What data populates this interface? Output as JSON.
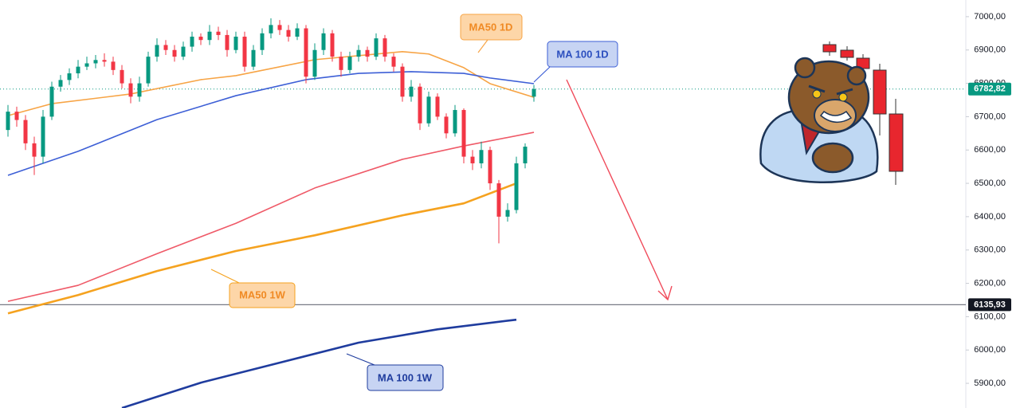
{
  "chart_data": {
    "type": "candlestick",
    "open": [
      6660,
      6715,
      6690,
      6620,
      6580,
      6700,
      6790,
      6810,
      6830,
      6850,
      6860,
      6870,
      6865,
      6840,
      6800,
      6760,
      6800,
      6880,
      6915,
      6900,
      6880,
      6910,
      6940,
      6930,
      6955,
      6945,
      6900,
      6940,
      6850,
      6900,
      6950,
      6975,
      6960,
      6940,
      6965,
      6820,
      6900,
      6950,
      6880,
      6840,
      6880,
      6900,
      6880,
      6935,
      6880,
      6850,
      6760,
      6790,
      6680,
      6760,
      6700,
      6650,
      6720,
      6580,
      6560,
      6600,
      6500,
      6400,
      6420,
      6560,
      6760
    ],
    "high": [
      6735,
      6730,
      6705,
      6640,
      6720,
      6805,
      6825,
      6845,
      6870,
      6880,
      6885,
      6890,
      6880,
      6855,
      6815,
      6820,
      6895,
      6935,
      6930,
      6915,
      6925,
      6955,
      6950,
      6975,
      6970,
      6960,
      6955,
      6955,
      6915,
      6965,
      6995,
      6990,
      6975,
      6980,
      6975,
      6920,
      6965,
      6960,
      6895,
      6895,
      6915,
      6910,
      6950,
      6945,
      6890,
      6860,
      6810,
      6800,
      6775,
      6770,
      6710,
      6735,
      6725,
      6600,
      6625,
      6610,
      6510,
      6440,
      6580,
      6620,
      6795
    ],
    "low": [
      6640,
      6670,
      6600,
      6525,
      6560,
      6690,
      6775,
      6795,
      6815,
      6840,
      6845,
      6850,
      6825,
      6785,
      6740,
      6745,
      6790,
      6865,
      6885,
      6865,
      6870,
      6895,
      6915,
      6915,
      6930,
      6880,
      6890,
      6835,
      6840,
      6885,
      6935,
      6945,
      6925,
      6930,
      6800,
      6810,
      6885,
      6865,
      6820,
      6830,
      6865,
      6865,
      6870,
      6865,
      6835,
      6745,
      6745,
      6660,
      6670,
      6690,
      6635,
      6640,
      6560,
      6540,
      6545,
      6480,
      6320,
      6385,
      6410,
      6545,
      6745
    ],
    "close": [
      6715,
      6690,
      6620,
      6580,
      6700,
      6790,
      6810,
      6830,
      6850,
      6860,
      6870,
      6865,
      6840,
      6800,
      6760,
      6800,
      6880,
      6915,
      6900,
      6880,
      6910,
      6940,
      6930,
      6955,
      6945,
      6900,
      6940,
      6850,
      6900,
      6950,
      6975,
      6960,
      6940,
      6965,
      6820,
      6900,
      6950,
      6880,
      6840,
      6880,
      6900,
      6880,
      6935,
      6880,
      6850,
      6760,
      6790,
      6680,
      6760,
      6700,
      6650,
      6720,
      6580,
      6560,
      6600,
      6500,
      6400,
      6420,
      6560,
      6610,
      6782.82
    ],
    "up_color": "#089981",
    "down_color": "#f23645",
    "series": [
      {
        "name": "MA50 1D",
        "color": "#f7a445",
        "x": [
          0,
          5,
          14,
          22,
          26,
          35,
          45,
          48,
          52,
          55,
          60
        ],
        "values": [
          6703,
          6739,
          6768,
          6811,
          6823,
          6871,
          6895,
          6888,
          6847,
          6799,
          6758
        ]
      },
      {
        "name": "MA 100 1D",
        "color": "#3d5fd6",
        "x": [
          0,
          8,
          17,
          26,
          34,
          40,
          46,
          52,
          55,
          60
        ],
        "values": [
          6524,
          6596,
          6691,
          6763,
          6811,
          6830,
          6835,
          6830,
          6816,
          6799
        ]
      },
      {
        "color": "#ef5a68",
        "x": [
          0,
          8,
          17,
          26,
          35,
          45,
          52,
          60
        ],
        "values": [
          6146,
          6194,
          6289,
          6380,
          6486,
          6572,
          6612,
          6653
        ]
      },
      {
        "name": "MA50 1W",
        "color": "#f5a21f",
        "x": [
          0,
          8,
          17,
          26,
          35,
          45,
          52,
          58
        ],
        "values": [
          6110,
          6165,
          6237,
          6297,
          6344,
          6404,
          6440,
          6500
        ]
      },
      {
        "name": "MA 100 1W",
        "color": "#1f3c9e",
        "x": [
          13,
          22,
          31,
          40,
          49,
          58
        ],
        "values": [
          5826,
          5902,
          5962,
          6022,
          6062,
          6091
        ]
      }
    ],
    "price_labels": [
      {
        "value": 6782.82,
        "label": "6782,82"
      },
      {
        "value": 6135.93,
        "label": "6135,93"
      }
    ],
    "ylim": [
      5826,
      7050
    ],
    "yticks": [
      {
        "value": 7000,
        "label": "7000,00"
      },
      {
        "value": 6900,
        "label": "6900,00"
      },
      {
        "value": 6800,
        "label": "6800,00"
      },
      {
        "value": 6700,
        "label": "6700,00"
      },
      {
        "value": 6600,
        "label": "6600,00"
      },
      {
        "value": 6500,
        "label": "6500,00"
      },
      {
        "value": 6400,
        "label": "6400,00"
      },
      {
        "value": 6300,
        "label": "6300,00"
      },
      {
        "value": 6200,
        "label": "6200,00"
      },
      {
        "value": 6100,
        "label": "6100,00"
      },
      {
        "value": 6000,
        "label": "6000,00"
      },
      {
        "value": 5900,
        "label": "5900,00"
      }
    ]
  }
}
